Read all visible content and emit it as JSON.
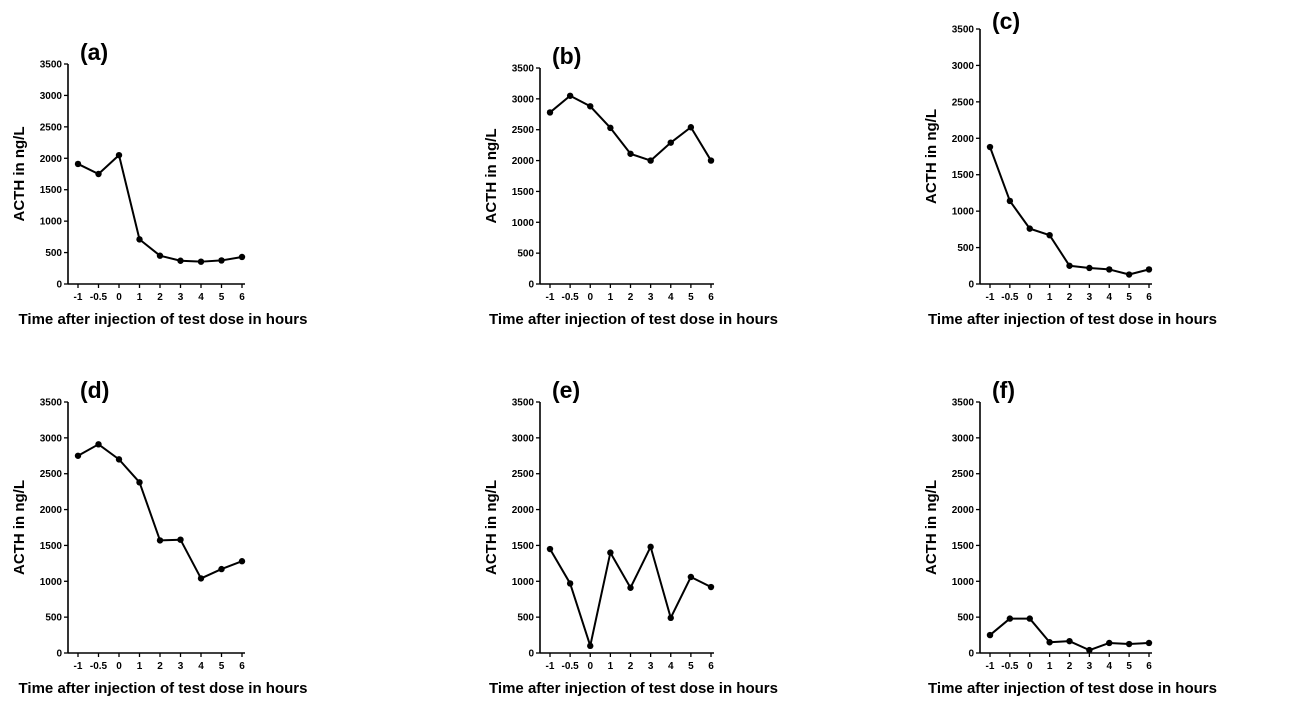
{
  "chart_data": [
    {
      "type": "line",
      "panel_label": "(a)",
      "xlabel": "Time after injection of test dose in hours",
      "ylabel": "ACTH in ng/L",
      "categories": [
        "-1",
        "-0.5",
        "0",
        "1",
        "2",
        "3",
        "4",
        "5",
        "6"
      ],
      "values": [
        1910,
        1750,
        2050,
        710,
        450,
        370,
        355,
        375,
        430
      ],
      "ylim": [
        0,
        3500
      ],
      "yticks": [
        0,
        500,
        1000,
        1500,
        2000,
        2500,
        3000,
        3500
      ]
    },
    {
      "type": "line",
      "panel_label": "(b)",
      "xlabel": "Time after injection of test dose in hours",
      "ylabel": "ACTH in ng/L",
      "categories": [
        "-1",
        "-0.5",
        "0",
        "1",
        "2",
        "3",
        "4",
        "5",
        "6"
      ],
      "values": [
        2780,
        3050,
        2880,
        2530,
        2110,
        2000,
        2290,
        2540,
        2000
      ],
      "ylim": [
        0,
        3500
      ],
      "yticks": [
        0,
        500,
        1000,
        1500,
        2000,
        2500,
        3000,
        3500
      ]
    },
    {
      "type": "line",
      "panel_label": "(c)",
      "xlabel": "Time after injection of test dose in hours",
      "ylabel": "ACTH in ng/L",
      "categories": [
        "-1",
        "-0.5",
        "0",
        "1",
        "2",
        "3",
        "4",
        "5",
        "6"
      ],
      "values": [
        1880,
        1140,
        760,
        670,
        250,
        220,
        200,
        130,
        200
      ],
      "ylim": [
        0,
        3500
      ],
      "yticks": [
        0,
        500,
        1000,
        1500,
        2000,
        2500,
        3000,
        3500
      ]
    },
    {
      "type": "line",
      "panel_label": "(d)",
      "xlabel": "Time after injection of test dose in hours",
      "ylabel": "ACTH in ng/L",
      "categories": [
        "-1",
        "-0.5",
        "0",
        "1",
        "2",
        "3",
        "4",
        "5",
        "6"
      ],
      "values": [
        2750,
        2910,
        2700,
        2380,
        1570,
        1580,
        1040,
        1170,
        1280
      ],
      "ylim": [
        0,
        3500
      ],
      "yticks": [
        0,
        500,
        1000,
        1500,
        2000,
        2500,
        3000,
        3500
      ]
    },
    {
      "type": "line",
      "panel_label": "(e)",
      "xlabel": "Time after injection of test dose in hours",
      "ylabel": "ACTH in ng/L",
      "categories": [
        "-1",
        "-0.5",
        "0",
        "1",
        "2",
        "3",
        "4",
        "5",
        "6"
      ],
      "values": [
        1450,
        970,
        100,
        1400,
        910,
        1480,
        490,
        1060,
        920
      ],
      "ylim": [
        0,
        3500
      ],
      "yticks": [
        0,
        500,
        1000,
        1500,
        2000,
        2500,
        3000,
        3500
      ]
    },
    {
      "type": "line",
      "panel_label": "(f)",
      "xlabel": "Time after injection of test dose in hours",
      "ylabel": "ACTH in ng/L",
      "categories": [
        "-1",
        "-0.5",
        "0",
        "1",
        "2",
        "3",
        "4",
        "5",
        "6"
      ],
      "values": [
        250,
        480,
        480,
        150,
        165,
        40,
        140,
        125,
        140
      ],
      "ylim": [
        0,
        3500
      ],
      "yticks": [
        0,
        500,
        1000,
        1500,
        2000,
        2500,
        3000,
        3500
      ]
    }
  ]
}
